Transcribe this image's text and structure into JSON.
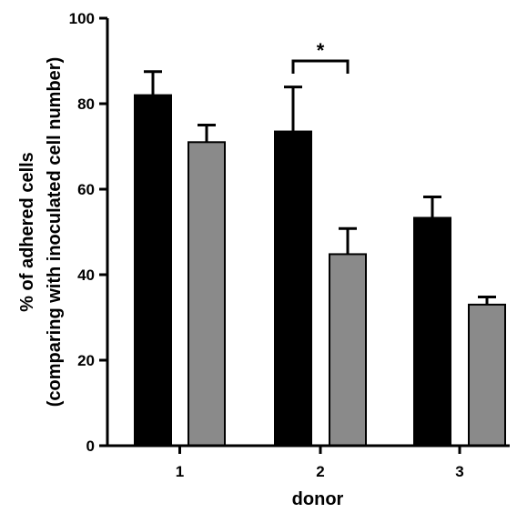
{
  "chart_data": {
    "type": "bar",
    "xlabel": "donor",
    "ylabel_lines": [
      "% of adhered cells",
      "(comparing with inoculated cell number)"
    ],
    "categories": [
      "1",
      "2",
      "3"
    ],
    "ylim": [
      0,
      100
    ],
    "yticks": [
      0,
      20,
      40,
      60,
      80,
      100
    ],
    "grid": false,
    "legend": "none",
    "series": [
      {
        "color": "#000000",
        "values": [
          82,
          73.5,
          53.3
        ],
        "errors": [
          5.5,
          10.4,
          4.9
        ]
      },
      {
        "color": "#8a8a8a",
        "values": [
          71,
          44.8,
          33
        ],
        "errors": [
          4.0,
          6.0,
          1.8
        ]
      }
    ],
    "annotations": [
      {
        "type": "significance",
        "label": "*",
        "category": "2",
        "between_series": [
          0,
          1
        ],
        "y": 90
      }
    ]
  }
}
